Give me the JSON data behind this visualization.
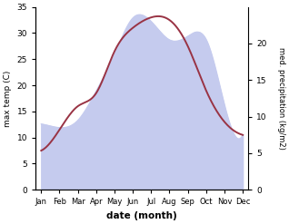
{
  "months": [
    "Jan",
    "Feb",
    "Mar",
    "Apr",
    "May",
    "Jun",
    "Jul",
    "Aug",
    "Sep",
    "Oct",
    "Nov",
    "Dec"
  ],
  "temperature": [
    7.5,
    11.5,
    16.0,
    18.5,
    26.5,
    31.0,
    33.0,
    32.5,
    27.5,
    19.0,
    13.0,
    10.5
  ],
  "precipitation": [
    9.0,
    8.5,
    9.5,
    13.5,
    18.5,
    23.5,
    23.0,
    20.5,
    21.0,
    20.5,
    11.5,
    7.5
  ],
  "temp_color": "#993344",
  "precip_fill_color": "#c5cbee",
  "temp_ylim": [
    0,
    35
  ],
  "precip_ylim": [
    0,
    25
  ],
  "right_yticks": [
    0,
    5,
    10,
    15,
    20
  ],
  "left_yticks": [
    0,
    5,
    10,
    15,
    20,
    25,
    30,
    35
  ],
  "xlabel": "date (month)",
  "ylabel_left": "max temp (C)",
  "ylabel_right": "med. precipitation (kg/m2)",
  "bg_color": "#ffffff",
  "fig_width": 3.18,
  "fig_height": 2.47,
  "dpi": 100
}
